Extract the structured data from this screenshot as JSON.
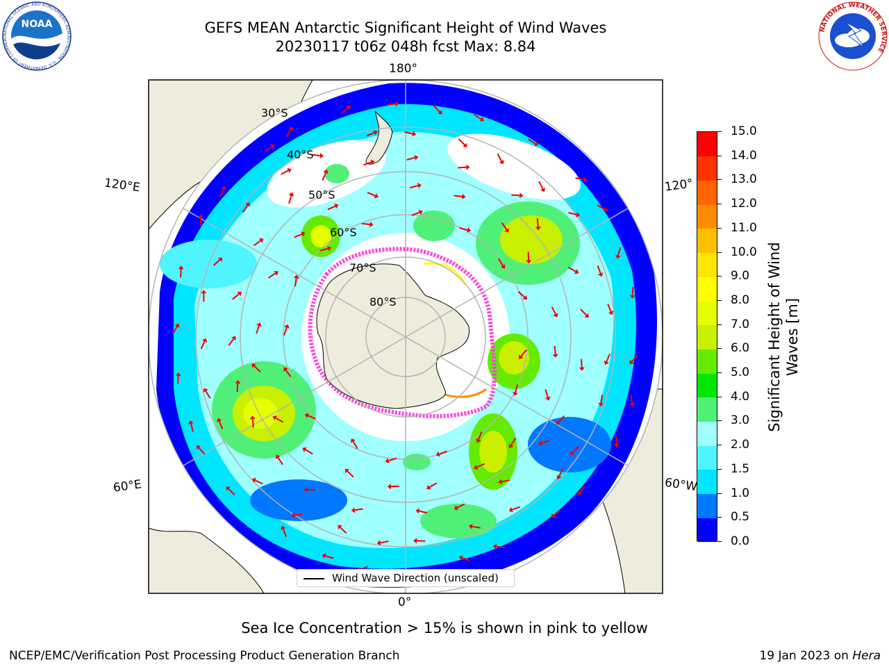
{
  "header": {
    "title_line1": "GEFS MEAN Antarctic Significant Height of Wind Waves",
    "title_line2": "20230117 t06z 048h fcst   Max: 8.84"
  },
  "logos": {
    "left": "NOAA",
    "left_ring_text": "NATIONAL OCEANIC AND ATMOSPHERIC ADMINISTRATION · U.S. DEPARTMENT OF COMMERCE",
    "right_ring_text": "NATIONAL WEATHER SERVICE"
  },
  "map": {
    "longitude_labels": {
      "top": "180°",
      "bottom": "0°",
      "left_upper": "120°E",
      "left_lower": "60°E",
      "right_upper": "120°",
      "right_lower": "60°W"
    },
    "latitude_labels": [
      "30°S",
      "40°S",
      "50°S",
      "60°S",
      "70°S",
      "80°S"
    ],
    "legend": "Wind Wave Direction (unscaled)",
    "colors": {
      "land": "#eeecdc",
      "ocean_no_data": "#ffffff",
      "wave_arrow": "#ee0000",
      "sea_ice": "#ff44dd",
      "grid": "#b4b4b4"
    }
  },
  "colorbar": {
    "label": "Significant Height of Wind Waves [m]",
    "ticks": [
      "0.0",
      "0.5",
      "1.0",
      "1.5",
      "2.0",
      "3.0",
      "4.0",
      "5.0",
      "6.0",
      "7.0",
      "8.0",
      "9.0",
      "10.0",
      "11.0",
      "12.0",
      "13.0",
      "14.0",
      "15.0"
    ],
    "colors": [
      "#0000ff",
      "#0078ff",
      "#00e6ff",
      "#50f4ff",
      "#a0ffff",
      "#50f078",
      "#00e600",
      "#64eb00",
      "#c8f000",
      "#e6ff00",
      "#ffff00",
      "#ffe600",
      "#ffbe00",
      "#ff8c00",
      "#ff6400",
      "#ff3200",
      "#ff0000"
    ]
  },
  "footer": {
    "note": "Sea Ice Concentration > 15% is shown in pink to yellow",
    "credit": "NCEP/EMC/Verification Post Processing Product Generation Branch",
    "date_prefix": "19 Jan 2023 on ",
    "machine": "Hera"
  }
}
